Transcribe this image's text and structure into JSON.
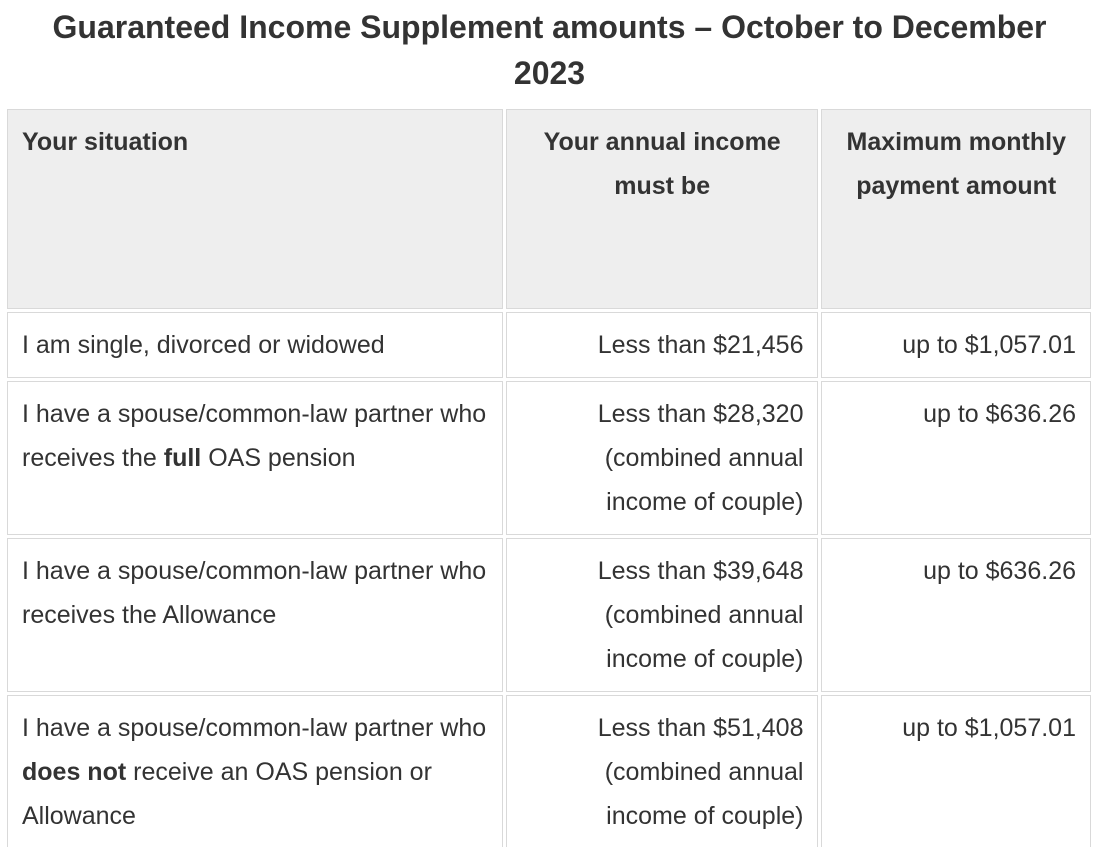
{
  "title": {
    "line1": "Guaranteed Income Supplement amounts – October to December",
    "line2": "2023",
    "full": "Guaranteed Income Supplement amounts – October to December 2023"
  },
  "table": {
    "columns": [
      {
        "label": "Your situation",
        "align": "left"
      },
      {
        "label": "Your annual income must be",
        "align": "center-header-right-cells"
      },
      {
        "label": "Maximum monthly payment amount",
        "align": "center-header-right-cells"
      }
    ],
    "rows": [
      {
        "situation": {
          "prefix": "I am single, divorced or widowed",
          "bold": "",
          "suffix": ""
        },
        "income": "Less than $21,456",
        "payment": "up to $1,057.01"
      },
      {
        "situation": {
          "prefix": "I have a spouse/common-law partner who receives the ",
          "bold": "full",
          "suffix": " OAS pension"
        },
        "income": "Less than $28,320 (combined annual income of couple)",
        "payment": "up to $636.26"
      },
      {
        "situation": {
          "prefix": "I have a spouse/common-law partner who receives the Allowance",
          "bold": "",
          "suffix": ""
        },
        "income": "Less than $39,648 (combined annual income of couple)",
        "payment": "up to $636.26"
      },
      {
        "situation": {
          "prefix": "I have a spouse/common-law partner who ",
          "bold": "does not",
          "suffix": " receive an OAS pension or Allowance"
        },
        "income": "Less than $51,408 (combined annual income of couple)",
        "payment": "up to $1,057.01"
      }
    ]
  },
  "colors": {
    "text": "#333333",
    "header_background": "#eeeeee",
    "border": "#d9d9d9",
    "row_background": "#ffffff"
  }
}
